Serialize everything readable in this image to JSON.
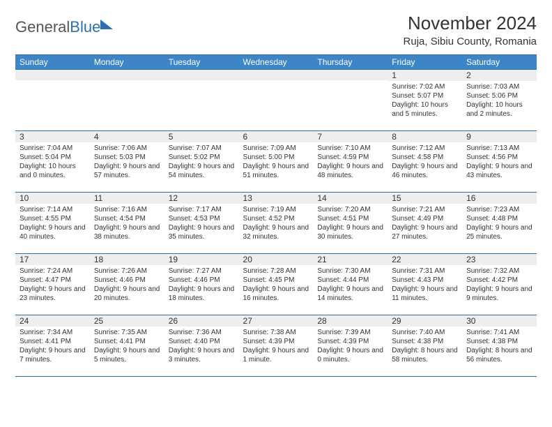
{
  "logo": {
    "text_general": "General",
    "text_blue": "Blue"
  },
  "title": "November 2024",
  "subtitle": "Ruja, Sibiu County, Romania",
  "header_row_bg": "#3d85c6",
  "header_row_color": "#ffffff",
  "daynum_bg": "#eeeeee",
  "border_color": "#2f6fab",
  "text_color": "#333333",
  "font_family": "Arial, Helvetica, sans-serif",
  "day_headers": [
    "Sunday",
    "Monday",
    "Tuesday",
    "Wednesday",
    "Thursday",
    "Friday",
    "Saturday"
  ],
  "weeks": [
    [
      {
        "num": "",
        "sunrise": "",
        "sunset": "",
        "daylight": ""
      },
      {
        "num": "",
        "sunrise": "",
        "sunset": "",
        "daylight": ""
      },
      {
        "num": "",
        "sunrise": "",
        "sunset": "",
        "daylight": ""
      },
      {
        "num": "",
        "sunrise": "",
        "sunset": "",
        "daylight": ""
      },
      {
        "num": "",
        "sunrise": "",
        "sunset": "",
        "daylight": ""
      },
      {
        "num": "1",
        "sunrise": "Sunrise: 7:02 AM",
        "sunset": "Sunset: 5:07 PM",
        "daylight": "Daylight: 10 hours and 5 minutes."
      },
      {
        "num": "2",
        "sunrise": "Sunrise: 7:03 AM",
        "sunset": "Sunset: 5:06 PM",
        "daylight": "Daylight: 10 hours and 2 minutes."
      }
    ],
    [
      {
        "num": "3",
        "sunrise": "Sunrise: 7:04 AM",
        "sunset": "Sunset: 5:04 PM",
        "daylight": "Daylight: 10 hours and 0 minutes."
      },
      {
        "num": "4",
        "sunrise": "Sunrise: 7:06 AM",
        "sunset": "Sunset: 5:03 PM",
        "daylight": "Daylight: 9 hours and 57 minutes."
      },
      {
        "num": "5",
        "sunrise": "Sunrise: 7:07 AM",
        "sunset": "Sunset: 5:02 PM",
        "daylight": "Daylight: 9 hours and 54 minutes."
      },
      {
        "num": "6",
        "sunrise": "Sunrise: 7:09 AM",
        "sunset": "Sunset: 5:00 PM",
        "daylight": "Daylight: 9 hours and 51 minutes."
      },
      {
        "num": "7",
        "sunrise": "Sunrise: 7:10 AM",
        "sunset": "Sunset: 4:59 PM",
        "daylight": "Daylight: 9 hours and 48 minutes."
      },
      {
        "num": "8",
        "sunrise": "Sunrise: 7:12 AM",
        "sunset": "Sunset: 4:58 PM",
        "daylight": "Daylight: 9 hours and 46 minutes."
      },
      {
        "num": "9",
        "sunrise": "Sunrise: 7:13 AM",
        "sunset": "Sunset: 4:56 PM",
        "daylight": "Daylight: 9 hours and 43 minutes."
      }
    ],
    [
      {
        "num": "10",
        "sunrise": "Sunrise: 7:14 AM",
        "sunset": "Sunset: 4:55 PM",
        "daylight": "Daylight: 9 hours and 40 minutes."
      },
      {
        "num": "11",
        "sunrise": "Sunrise: 7:16 AM",
        "sunset": "Sunset: 4:54 PM",
        "daylight": "Daylight: 9 hours and 38 minutes."
      },
      {
        "num": "12",
        "sunrise": "Sunrise: 7:17 AM",
        "sunset": "Sunset: 4:53 PM",
        "daylight": "Daylight: 9 hours and 35 minutes."
      },
      {
        "num": "13",
        "sunrise": "Sunrise: 7:19 AM",
        "sunset": "Sunset: 4:52 PM",
        "daylight": "Daylight: 9 hours and 32 minutes."
      },
      {
        "num": "14",
        "sunrise": "Sunrise: 7:20 AM",
        "sunset": "Sunset: 4:51 PM",
        "daylight": "Daylight: 9 hours and 30 minutes."
      },
      {
        "num": "15",
        "sunrise": "Sunrise: 7:21 AM",
        "sunset": "Sunset: 4:49 PM",
        "daylight": "Daylight: 9 hours and 27 minutes."
      },
      {
        "num": "16",
        "sunrise": "Sunrise: 7:23 AM",
        "sunset": "Sunset: 4:48 PM",
        "daylight": "Daylight: 9 hours and 25 minutes."
      }
    ],
    [
      {
        "num": "17",
        "sunrise": "Sunrise: 7:24 AM",
        "sunset": "Sunset: 4:47 PM",
        "daylight": "Daylight: 9 hours and 23 minutes."
      },
      {
        "num": "18",
        "sunrise": "Sunrise: 7:26 AM",
        "sunset": "Sunset: 4:46 PM",
        "daylight": "Daylight: 9 hours and 20 minutes."
      },
      {
        "num": "19",
        "sunrise": "Sunrise: 7:27 AM",
        "sunset": "Sunset: 4:46 PM",
        "daylight": "Daylight: 9 hours and 18 minutes."
      },
      {
        "num": "20",
        "sunrise": "Sunrise: 7:28 AM",
        "sunset": "Sunset: 4:45 PM",
        "daylight": "Daylight: 9 hours and 16 minutes."
      },
      {
        "num": "21",
        "sunrise": "Sunrise: 7:30 AM",
        "sunset": "Sunset: 4:44 PM",
        "daylight": "Daylight: 9 hours and 14 minutes."
      },
      {
        "num": "22",
        "sunrise": "Sunrise: 7:31 AM",
        "sunset": "Sunset: 4:43 PM",
        "daylight": "Daylight: 9 hours and 11 minutes."
      },
      {
        "num": "23",
        "sunrise": "Sunrise: 7:32 AM",
        "sunset": "Sunset: 4:42 PM",
        "daylight": "Daylight: 9 hours and 9 minutes."
      }
    ],
    [
      {
        "num": "24",
        "sunrise": "Sunrise: 7:34 AM",
        "sunset": "Sunset: 4:41 PM",
        "daylight": "Daylight: 9 hours and 7 minutes."
      },
      {
        "num": "25",
        "sunrise": "Sunrise: 7:35 AM",
        "sunset": "Sunset: 4:41 PM",
        "daylight": "Daylight: 9 hours and 5 minutes."
      },
      {
        "num": "26",
        "sunrise": "Sunrise: 7:36 AM",
        "sunset": "Sunset: 4:40 PM",
        "daylight": "Daylight: 9 hours and 3 minutes."
      },
      {
        "num": "27",
        "sunrise": "Sunrise: 7:38 AM",
        "sunset": "Sunset: 4:39 PM",
        "daylight": "Daylight: 9 hours and 1 minute."
      },
      {
        "num": "28",
        "sunrise": "Sunrise: 7:39 AM",
        "sunset": "Sunset: 4:39 PM",
        "daylight": "Daylight: 9 hours and 0 minutes."
      },
      {
        "num": "29",
        "sunrise": "Sunrise: 7:40 AM",
        "sunset": "Sunset: 4:38 PM",
        "daylight": "Daylight: 8 hours and 58 minutes."
      },
      {
        "num": "30",
        "sunrise": "Sunrise: 7:41 AM",
        "sunset": "Sunset: 4:38 PM",
        "daylight": "Daylight: 8 hours and 56 minutes."
      }
    ]
  ]
}
